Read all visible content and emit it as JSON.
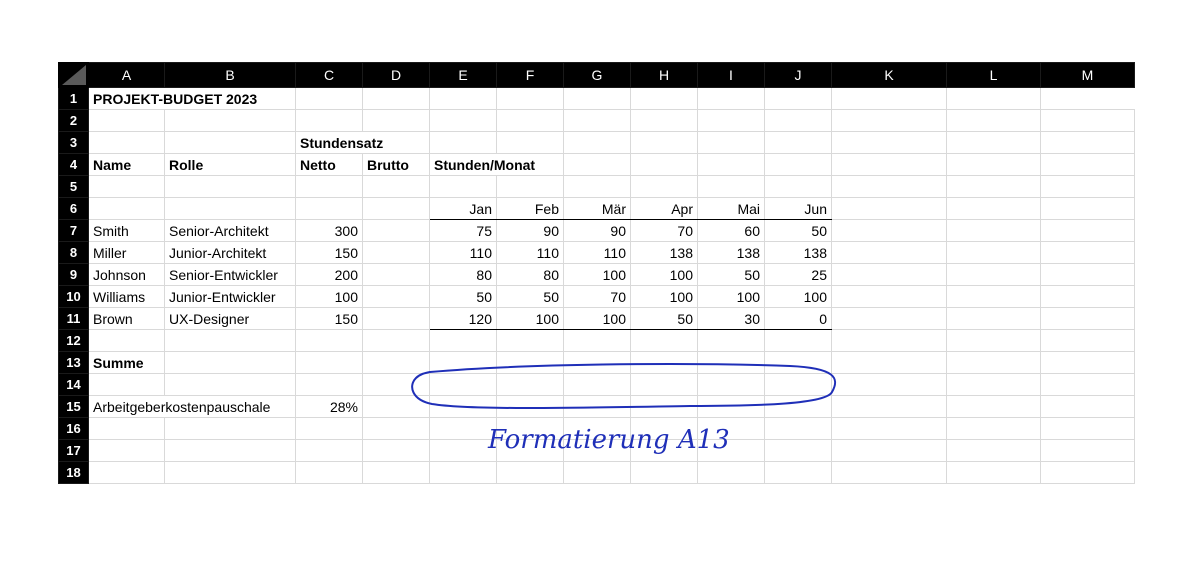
{
  "columns": [
    "A",
    "B",
    "C",
    "D",
    "E",
    "F",
    "G",
    "H",
    "I",
    "J",
    "K",
    "L",
    "M"
  ],
  "rows": [
    "1",
    "2",
    "3",
    "4",
    "5",
    "6",
    "7",
    "8",
    "9",
    "10",
    "11",
    "12",
    "13",
    "14",
    "15",
    "16",
    "17",
    "18"
  ],
  "cells": {
    "title": "PROJEKT-BUDGET 2023",
    "stundensatz": "Stundensatz",
    "h_name": "Name",
    "h_rolle": "Rolle",
    "h_netto": "Netto",
    "h_brutto": "Brutto",
    "h_stunden": "Stunden/Monat",
    "months": [
      "Jan",
      "Feb",
      "Mär",
      "Apr",
      "Mai",
      "Jun"
    ],
    "employees": [
      {
        "name": "Smith",
        "role": "Senior-Architekt",
        "rate": "300",
        "hours": [
          "75",
          "90",
          "90",
          "70",
          "60",
          "50"
        ]
      },
      {
        "name": "Miller",
        "role": "Junior-Architekt",
        "rate": "150",
        "hours": [
          "110",
          "110",
          "110",
          "138",
          "138",
          "138"
        ]
      },
      {
        "name": "Johnson",
        "role": "Senior-Entwickler",
        "rate": "200",
        "hours": [
          "80",
          "80",
          "100",
          "100",
          "50",
          "25"
        ]
      },
      {
        "name": "Williams",
        "role": "Junior-Entwickler",
        "rate": "100",
        "hours": [
          "50",
          "50",
          "70",
          "100",
          "100",
          "100"
        ]
      },
      {
        "name": "Brown",
        "role": "UX-Designer",
        "rate": "150",
        "hours": [
          "120",
          "100",
          "100",
          "50",
          "30",
          "0"
        ]
      }
    ],
    "summe": "Summe",
    "pauschale_label": "Arbeitgeberkostenpauschale",
    "pauschale_value": "28%"
  },
  "annotation": {
    "handwritten_note": "Formatierung A13",
    "ink_color": "#1f2fb8"
  }
}
